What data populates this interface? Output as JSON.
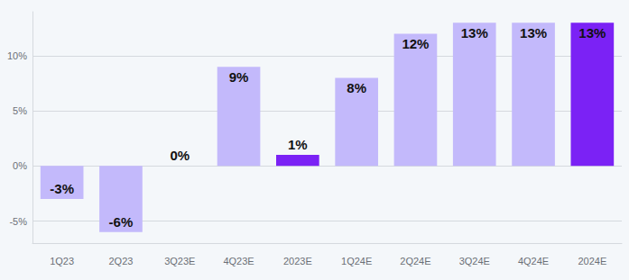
{
  "chart_data": {
    "type": "bar",
    "categories": [
      "1Q23",
      "2Q23",
      "3Q23E",
      "4Q23E",
      "2023E",
      "1Q24E",
      "2Q24E",
      "3Q24E",
      "4Q24E",
      "2024E"
    ],
    "values": [
      -3,
      -6,
      0,
      9,
      1,
      8,
      12,
      13,
      13,
      13
    ],
    "value_labels": [
      "-3%",
      "-6%",
      "0%",
      "9%",
      "1%",
      "8%",
      "12%",
      "13%",
      "13%",
      "13%"
    ],
    "colors": [
      "#c3b9fb",
      "#c3b9fb",
      "#c3b9fb",
      "#c3b9fb",
      "#7b22f5",
      "#c3b9fb",
      "#c3b9fb",
      "#c3b9fb",
      "#c3b9fb",
      "#7b22f5"
    ],
    "ylim": [
      -7,
      14
    ],
    "yticks": [
      {
        "value": -5,
        "label": "-5%"
      },
      {
        "value": 0,
        "label": "0%"
      },
      {
        "value": 5,
        "label": "5%"
      },
      {
        "value": 10,
        "label": "10%"
      }
    ],
    "grid": true,
    "data_labels": true
  }
}
